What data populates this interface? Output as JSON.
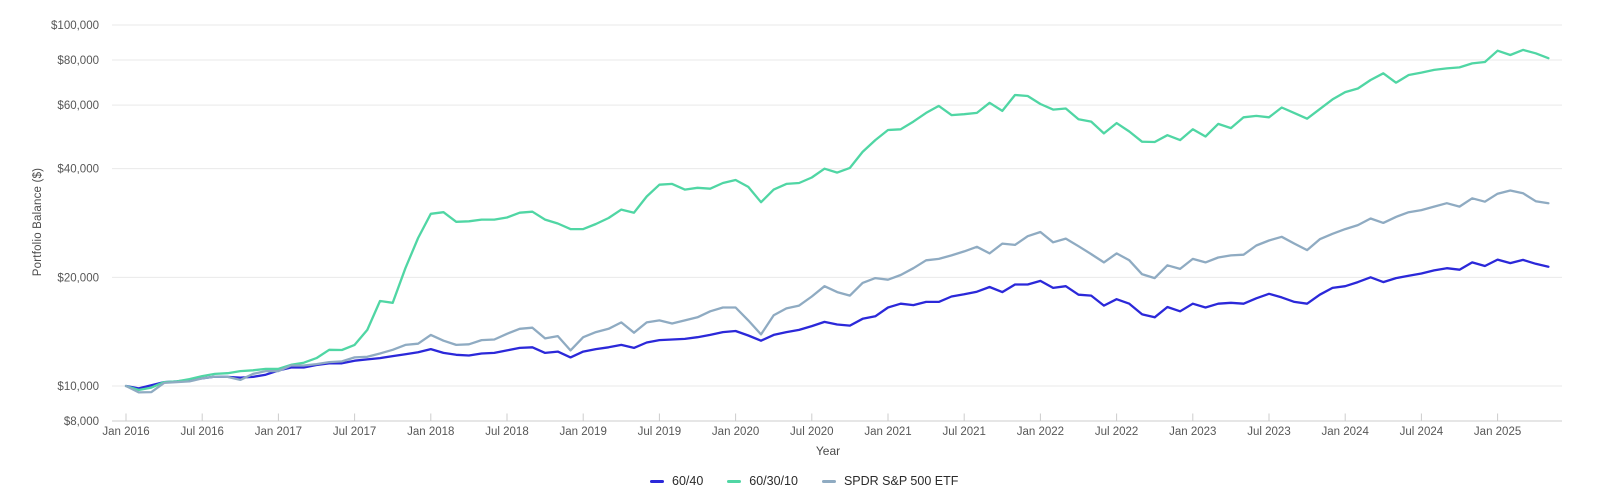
{
  "chart_data": {
    "type": "line",
    "title": "",
    "xlabel": "Year",
    "ylabel": "Portfolio Balance ($)",
    "y_scale": "log",
    "grid": true,
    "legend_position": "bottom",
    "x_unit": "month",
    "x_start": "Jan 2016",
    "x_end": "May 2025",
    "x_tick_labels": [
      "Jan 2016",
      "Jul 2016",
      "Jan 2017",
      "Jul 2017",
      "Jan 2018",
      "Jul 2018",
      "Jan 2019",
      "Jul 2019",
      "Jan 2020",
      "Jul 2020",
      "Jan 2021",
      "Jul 2021",
      "Jan 2022",
      "Jul 2022",
      "Jan 2023",
      "Jul 2023",
      "Jan 2024",
      "Jul 2024",
      "Jan 2025"
    ],
    "y_ticks": [
      8000,
      10000,
      20000,
      40000,
      60000,
      80000,
      100000
    ],
    "y_tick_labels": [
      "$8,000",
      "$10,000",
      "$20,000",
      "$40,000",
      "$60,000",
      "$80,000",
      "$100,000"
    ],
    "ylim": [
      8000,
      100000
    ],
    "colors": {
      "grid": "#e9e9e9",
      "axis": "#cccccc",
      "tick_text": "#575757"
    },
    "series": [
      {
        "name": "60/40",
        "color": "#2b28d9",
        "values": [
          10000,
          9850,
          10050,
          10250,
          10300,
          10400,
          10500,
          10620,
          10600,
          10550,
          10600,
          10750,
          11040,
          11250,
          11250,
          11430,
          11550,
          11560,
          11750,
          11850,
          11950,
          12100,
          12250,
          12400,
          12650,
          12350,
          12200,
          12150,
          12300,
          12350,
          12550,
          12750,
          12800,
          12350,
          12450,
          12000,
          12450,
          12650,
          12800,
          13000,
          12750,
          13200,
          13400,
          13450,
          13500,
          13650,
          13850,
          14100,
          14200,
          13800,
          13350,
          13850,
          14100,
          14300,
          14650,
          15050,
          14800,
          14700,
          15350,
          15600,
          16500,
          16900,
          16750,
          17100,
          17100,
          17700,
          17950,
          18250,
          18800,
          18200,
          19100,
          19100,
          19550,
          18700,
          18900,
          17900,
          17800,
          16700,
          17400,
          16900,
          15800,
          15500,
          16550,
          16100,
          16900,
          16500,
          16900,
          17000,
          16900,
          17500,
          18000,
          17600,
          17100,
          16900,
          17900,
          18700,
          18900,
          19400,
          20000,
          19400,
          19900,
          20200,
          20500,
          20900,
          21200,
          21000,
          22000,
          21500,
          22400,
          21900,
          22350,
          21800,
          21400
        ]
      },
      {
        "name": "60/30/10",
        "color": "#50d6a4",
        "values": [
          10000,
          9750,
          9900,
          10250,
          10300,
          10450,
          10650,
          10800,
          10850,
          11000,
          11050,
          11150,
          11150,
          11450,
          11600,
          11950,
          12600,
          12580,
          13000,
          14300,
          17200,
          17000,
          21200,
          25700,
          30000,
          30300,
          28500,
          28600,
          28900,
          28900,
          29300,
          30200,
          30400,
          28900,
          28200,
          27200,
          27200,
          28100,
          29200,
          30800,
          30200,
          33500,
          36100,
          36300,
          35000,
          35400,
          35200,
          36500,
          37200,
          35600,
          32300,
          35000,
          36300,
          36500,
          37800,
          40000,
          39000,
          40200,
          44500,
          48000,
          51200,
          51400,
          54000,
          57100,
          59700,
          56300,
          56600,
          57100,
          60900,
          57800,
          64000,
          63600,
          60400,
          58300,
          58700,
          54800,
          54000,
          50100,
          53500,
          50700,
          47500,
          47400,
          49500,
          48000,
          51400,
          49100,
          53200,
          51800,
          55500,
          56000,
          55500,
          59100,
          57000,
          55000,
          58500,
          62200,
          65200,
          66700,
          70400,
          73500,
          69200,
          72700,
          73800,
          75100,
          75800,
          76300,
          78300,
          79000,
          84900,
          82600,
          85300,
          83500,
          80900
        ]
      },
      {
        "name": "SPDR S&P 500 ETF",
        "color": "#8fabc2",
        "values": [
          10000,
          9600,
          9620,
          10200,
          10250,
          10300,
          10500,
          10620,
          10600,
          10400,
          10800,
          11000,
          11000,
          11400,
          11400,
          11500,
          11650,
          11700,
          12000,
          12050,
          12300,
          12600,
          13000,
          13100,
          13850,
          13350,
          13000,
          13050,
          13400,
          13450,
          13950,
          14400,
          14500,
          13550,
          13750,
          12550,
          13650,
          14100,
          14400,
          15000,
          14050,
          15000,
          15200,
          14900,
          15200,
          15500,
          16100,
          16500,
          16500,
          15200,
          13900,
          15700,
          16400,
          16700,
          17700,
          18900,
          18200,
          17800,
          19300,
          19900,
          19700,
          20300,
          21200,
          22300,
          22500,
          23000,
          23600,
          24300,
          23300,
          24800,
          24600,
          26000,
          26700,
          25000,
          25600,
          24400,
          23200,
          22000,
          23300,
          22300,
          20400,
          19900,
          21600,
          21100,
          22500,
          22000,
          22700,
          23000,
          23100,
          24500,
          25300,
          25900,
          24800,
          23800,
          25500,
          26400,
          27200,
          27900,
          29100,
          28300,
          29400,
          30300,
          30700,
          31400,
          32100,
          31400,
          33100,
          32400,
          34100,
          34800,
          34200,
          32500,
          32100
        ]
      }
    ]
  }
}
